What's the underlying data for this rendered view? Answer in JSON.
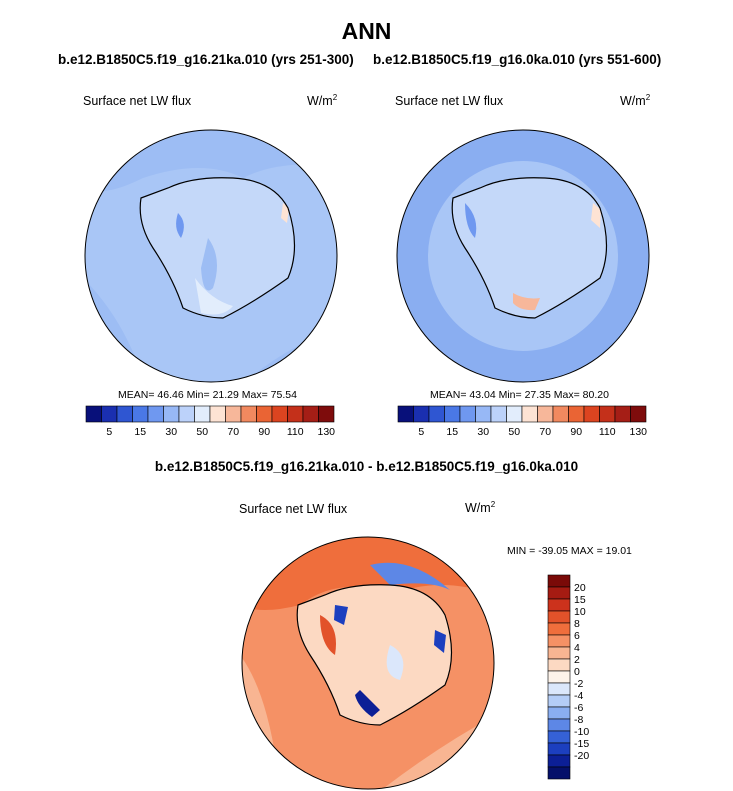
{
  "page": {
    "title": "ANN",
    "diff_title": "b.e12.B1850C5.f19_g16.21ka.010 - b.e12.B1850C5.f19_g16.0ka.010"
  },
  "panels": {
    "left": {
      "case": "b.e12.B1850C5.f19_g16.21ka.010 (yrs 251-300)",
      "variable": "Surface net LW flux",
      "unit": "W/m",
      "unit_exp": "2",
      "mean_label": "MEAN=",
      "mean": "46.46",
      "min_label": "Min=",
      "min": "21.29",
      "max_label": "Max=",
      "max": "75.54"
    },
    "right": {
      "case": "b.e12.B1850C5.f19_g16.0ka.010 (yrs 551-600)",
      "variable": "Surface net LW flux",
      "unit": "W/m",
      "unit_exp": "2",
      "mean_label": "MEAN=",
      "mean": "43.04",
      "min_label": "Min=",
      "min": "27.35",
      "max_label": "Max=",
      "max": "80.20"
    },
    "diff": {
      "variable": "Surface net LW flux",
      "unit": "W/m",
      "unit_exp": "2",
      "minmax_text": "MIN = -39.05 MAX = 19.01"
    }
  },
  "chart_data": [
    {
      "type": "heatmap",
      "projection": "south polar stereographic",
      "title": "b.e12.B1850C5.f19_g16.21ka.010 (yrs 251-300)",
      "subtitle": "Surface net LW flux",
      "units": "W/m2",
      "stats": {
        "mean": 46.46,
        "min": 21.29,
        "max": 75.54
      },
      "colorbar": {
        "tick_labels": [
          "5",
          "15",
          "30",
          "50",
          "70",
          "90",
          "110",
          "130"
        ],
        "colors": [
          "#08107a",
          "#1a2fb0",
          "#2f56d2",
          "#4a78e6",
          "#6f98f0",
          "#97b8f6",
          "#bcd2fa",
          "#e2edfc",
          "#fde3d4",
          "#f7b79a",
          "#f1895f",
          "#ea6434",
          "#dc4420",
          "#c4301a",
          "#a51e16",
          "#7e0c0c"
        ]
      },
      "dominant_values": {
        "ocean": "30-50",
        "antarctic_interior": "50-70",
        "coastal_hotspots": "70-90"
      }
    },
    {
      "type": "heatmap",
      "projection": "south polar stereographic",
      "title": "b.e12.B1850C5.f19_g16.0ka.010 (yrs 551-600)",
      "subtitle": "Surface net LW flux",
      "units": "W/m2",
      "stats": {
        "mean": 43.04,
        "min": 27.35,
        "max": 80.2
      },
      "colorbar": {
        "tick_labels": [
          "5",
          "15",
          "30",
          "50",
          "70",
          "90",
          "110",
          "130"
        ],
        "colors": [
          "#08107a",
          "#1a2fb0",
          "#2f56d2",
          "#4a78e6",
          "#6f98f0",
          "#97b8f6",
          "#bcd2fa",
          "#e2edfc",
          "#fde3d4",
          "#f7b79a",
          "#f1895f",
          "#ea6434",
          "#dc4420",
          "#c4301a",
          "#a51e16",
          "#7e0c0c"
        ]
      },
      "dominant_values": {
        "ocean": "30-50",
        "antarctic_interior": "50-70",
        "coastal_hotspots": "70-90"
      }
    },
    {
      "type": "heatmap",
      "projection": "south polar stereographic",
      "title": "b.e12.B1850C5.f19_g16.21ka.010 - b.e12.B1850C5.f19_g16.0ka.010",
      "subtitle": "Surface net LW flux",
      "units": "W/m2",
      "stats": {
        "min": -39.05,
        "max": 19.01
      },
      "colorbar": {
        "orientation": "vertical",
        "tick_labels": [
          "20",
          "15",
          "10",
          "8",
          "6",
          "4",
          "2",
          "0",
          "-2",
          "-4",
          "-6",
          "-8",
          "-10",
          "-15",
          "-20"
        ],
        "colors": [
          "#7a0a08",
          "#a51b12",
          "#cc321c",
          "#e2522a",
          "#ef6e3c",
          "#f59165",
          "#f8b592",
          "#fcd9c2",
          "#fdf3ea",
          "#dbe7fb",
          "#b4cdf7",
          "#8aaef1",
          "#5d87e6",
          "#3561d6",
          "#1c3fbf",
          "#0c1f96",
          "#05106a"
        ]
      },
      "dominant_values": {
        "ocean": "2-10",
        "antarctic_interior": "-2 to 4",
        "coastal_lows": "-20 to -8"
      }
    }
  ]
}
